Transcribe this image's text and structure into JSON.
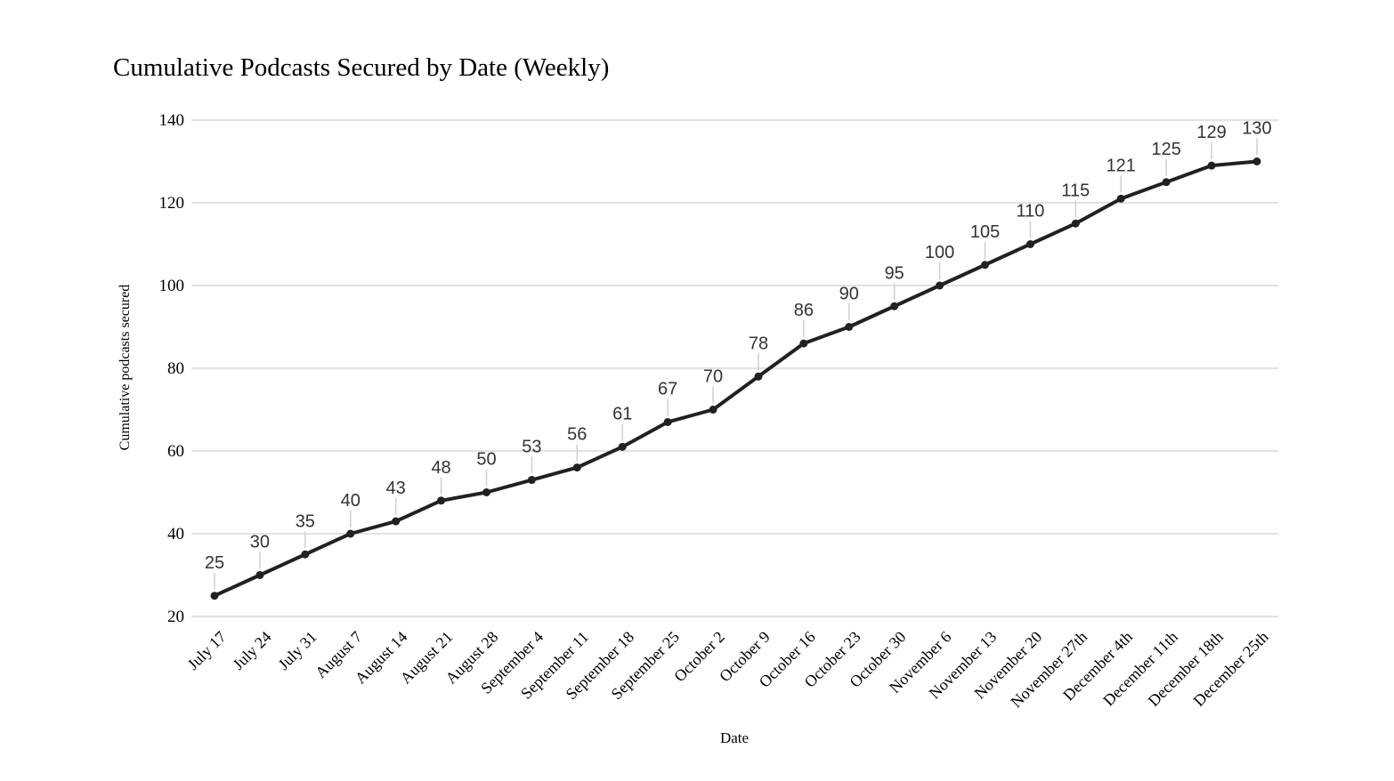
{
  "chart_data": {
    "type": "line",
    "title": "Cumulative Podcasts Secured by Date (Weekly)",
    "xlabel": "Date",
    "ylabel": "Cumulative podcasts secured",
    "ylim": [
      20,
      140
    ],
    "yticks": [
      20,
      40,
      60,
      80,
      100,
      120,
      140
    ],
    "grid": "horizontal",
    "legend": "none",
    "point_labels": true,
    "categories": [
      "July 17",
      "July 24",
      "July 31",
      "August 7",
      "August 14",
      "August 21",
      "August 28",
      "September 4",
      "September 11",
      "September 18",
      "September 25",
      "October 2",
      "October 9",
      "October 16",
      "October 23",
      "October 30",
      "November 6",
      "November 13",
      "November 20",
      "November 27th",
      "December 4th",
      "December 11th",
      "December 18th",
      "December 25th"
    ],
    "series": [
      {
        "name": "Cumulative podcasts secured",
        "values": [
          25,
          30,
          35,
          40,
          43,
          48,
          50,
          53,
          56,
          61,
          67,
          70,
          78,
          86,
          90,
          95,
          100,
          105,
          110,
          115,
          121,
          125,
          129,
          130
        ]
      }
    ],
    "colors": {
      "line": "#212121",
      "marker": "#212121",
      "grid": "#d9d9d9",
      "leader": "#cfcfcf",
      "point_label": "#333333",
      "axis_text": "#000000",
      "background": "#ffffff"
    }
  }
}
